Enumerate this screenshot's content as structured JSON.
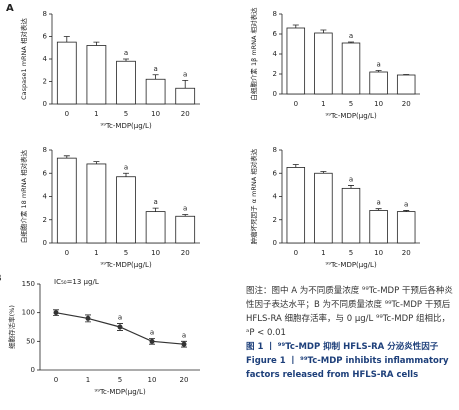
{
  "chart_data": [
    {
      "type": "bar",
      "panel": "A",
      "ylabel": "Caspase1 mRNA 相对表达",
      "xlabel": "⁹⁹Tc-MDP(μg/L)",
      "categories": [
        "0",
        "1",
        "5",
        "10",
        "20"
      ],
      "values": [
        5.5,
        5.2,
        3.8,
        2.2,
        1.4
      ],
      "errors": [
        0.5,
        0.3,
        0.2,
        0.4,
        0.7
      ],
      "annotations": [
        null,
        null,
        "a",
        "a",
        "a"
      ],
      "ylim": [
        0,
        8
      ],
      "yticks": [
        0,
        2,
        4,
        6,
        8
      ],
      "color": "#ffffff"
    },
    {
      "type": "bar",
      "ylabel": "白细胞介素 1β mRNA 相对表达",
      "xlabel": "⁹⁹Tc-MDP(μg/L)",
      "categories": [
        "0",
        "1",
        "5",
        "10",
        "20"
      ],
      "values": [
        6.6,
        6.1,
        5.1,
        2.2,
        1.9
      ],
      "errors": [
        0.3,
        0.3,
        0.1,
        0.15,
        0.05
      ],
      "annotations": [
        null,
        null,
        "a",
        "a",
        null
      ],
      "ylim": [
        0,
        8
      ],
      "yticks": [
        0,
        2,
        4,
        6,
        8
      ],
      "color": "#ffffff"
    },
    {
      "type": "bar",
      "ylabel": "白细胞介素 18 mRNA 相对表达",
      "xlabel": "⁹⁹Tc-MDP(μg/L)",
      "categories": [
        "0",
        "1",
        "5",
        "10",
        "20"
      ],
      "values": [
        7.3,
        6.8,
        5.7,
        2.7,
        2.3
      ],
      "errors": [
        0.2,
        0.2,
        0.3,
        0.3,
        0.15
      ],
      "annotations": [
        null,
        null,
        "a",
        "a",
        "a"
      ],
      "ylim": [
        0,
        8
      ],
      "yticks": [
        0,
        2,
        4,
        6,
        8
      ],
      "color": "#ffffff"
    },
    {
      "type": "bar",
      "ylabel": "肿瘤坏死因子 α mRNA 相对表达",
      "xlabel": "⁹⁹Tc-MDP(μg/L)",
      "categories": [
        "0",
        "1",
        "5",
        "10",
        "20"
      ],
      "values": [
        6.5,
        6.0,
        4.7,
        2.8,
        2.7
      ],
      "errors": [
        0.25,
        0.15,
        0.25,
        0.15,
        0.1
      ],
      "annotations": [
        null,
        null,
        "a",
        "a",
        "a"
      ],
      "ylim": [
        0,
        8
      ],
      "yticks": [
        0,
        2,
        4,
        6,
        8
      ],
      "color": "#ffffff"
    },
    {
      "type": "line",
      "panel": "B",
      "ylabel": "细胞存活率(%)",
      "xlabel": "⁹⁹Tc-MDP(μg/L)",
      "note": "IC₅₀=13 μg/L",
      "categories": [
        "0",
        "1",
        "5",
        "10",
        "20"
      ],
      "values": [
        100,
        90,
        75,
        50,
        45
      ],
      "errors": [
        5,
        6,
        6,
        5,
        5
      ],
      "annotations": [
        null,
        null,
        "a",
        "a",
        "a"
      ],
      "ylim": [
        0,
        150
      ],
      "yticks": [
        0,
        50,
        100,
        150
      ],
      "color": "#333333"
    }
  ],
  "caption": {
    "note": "图注：图中 A 为不同质量浓度 ⁹⁹Tc-MDP 干预后各种炎性因子表达水平；B 为不同质量浓度 ⁹⁹Tc-MDP 干预后 HFLS-RA 细胞存活率，与 0 μg/L ⁹⁹Tc-MDP 组相比，ᵃP < 0.01",
    "title_cn": "图 1 丨 ⁹⁹Tc-MDP 抑制 HFLS-RA 分泌炎性因子",
    "title_en": "Figure 1 丨 ⁹⁹Tc-MDP inhibits inflammatory factors released from HFLS-RA cells"
  }
}
